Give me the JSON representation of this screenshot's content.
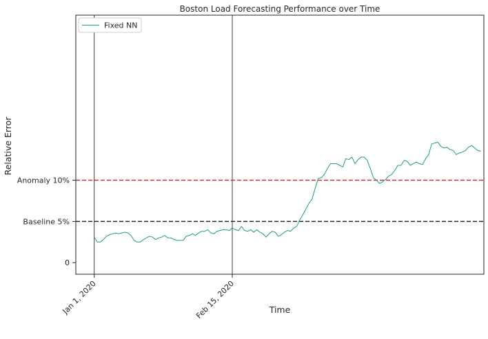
{
  "chart_data": {
    "type": "line",
    "title": "Boston Load Forecasting Performance over Time",
    "xlabel": "Time",
    "ylabel": "Relative Error",
    "xlim": [
      -6,
      127
    ],
    "ylim": [
      -1.4,
      30
    ],
    "legend_position": "top-left",
    "grid": false,
    "x_ticks": [
      {
        "label": "Jan 1, 2020",
        "x": 0
      },
      {
        "label": "Feb 15, 2020",
        "x": 45
      }
    ],
    "y_ticks": [
      {
        "label": "0",
        "y": 0
      },
      {
        "label": "Baseline 5%",
        "y": 5
      },
      {
        "label": "Anomaly 10%",
        "y": 10
      }
    ],
    "vertical_lines": [
      0,
      45
    ],
    "reference_lines": [
      {
        "y": 5,
        "color": "#262626",
        "style": "dashed"
      },
      {
        "y": 10,
        "color": "#cc3333",
        "style": "dashed"
      }
    ],
    "series": [
      {
        "name": "Fixed NN",
        "color": "#1b9e77",
        "x": [
          0,
          1,
          2,
          3,
          4,
          5,
          6,
          7,
          8,
          9,
          10,
          11,
          12,
          13,
          14,
          15,
          16,
          17,
          18,
          19,
          20,
          21,
          22,
          23,
          24,
          25,
          26,
          27,
          28,
          29,
          30,
          31,
          32,
          33,
          34,
          35,
          36,
          37,
          38,
          39,
          40,
          41,
          42,
          43,
          44,
          45,
          46,
          47,
          48,
          49,
          50,
          51,
          52,
          53,
          54,
          55,
          56,
          57,
          58,
          59,
          60,
          61,
          62,
          63,
          64,
          65,
          66,
          67,
          68,
          69,
          70,
          71,
          72,
          73,
          74,
          75,
          76,
          77,
          78,
          79,
          80,
          81,
          82,
          83,
          84,
          85,
          86,
          87,
          88,
          89,
          90,
          91,
          92,
          93,
          94,
          95,
          96,
          97,
          98,
          99,
          100,
          101,
          102,
          103,
          104,
          105,
          106,
          107,
          108,
          109,
          110,
          111,
          112,
          113,
          114,
          115,
          116,
          117,
          118,
          119,
          120,
          121,
          122,
          123,
          124,
          125,
          126
        ],
        "y": [
          3.1,
          2.5,
          2.5,
          2.8,
          3.2,
          3.4,
          3.5,
          3.6,
          3.5,
          3.6,
          3.7,
          3.6,
          3.3,
          2.7,
          2.5,
          2.5,
          2.8,
          3.0,
          3.2,
          3.1,
          2.8,
          3.0,
          3.1,
          3.3,
          3.0,
          3.0,
          2.8,
          2.7,
          2.7,
          2.7,
          3.2,
          3.3,
          3.5,
          3.3,
          3.6,
          3.8,
          3.8,
          4.0,
          3.6,
          3.5,
          3.8,
          3.9,
          4.0,
          4.0,
          3.9,
          4.2,
          4.0,
          3.9,
          4.4,
          3.9,
          3.8,
          4.0,
          3.7,
          4.0,
          3.7,
          3.5,
          3.1,
          3.5,
          3.8,
          3.7,
          3.2,
          3.4,
          3.7,
          3.9,
          3.8,
          4.2,
          4.4,
          5.2,
          5.8,
          6.5,
          7.2,
          7.7,
          9.0,
          10.2,
          10.3,
          10.7,
          11.4,
          12.0,
          12.0,
          12.0,
          11.8,
          11.6,
          12.6,
          12.5,
          12.8,
          12.0,
          12.5,
          12.8,
          12.8,
          12.4,
          11.4,
          10.3,
          10.0,
          9.6,
          9.8,
          10.1,
          10.5,
          10.7,
          11.2,
          11.8,
          11.8,
          12.4,
          12.3,
          11.8,
          12.0,
          12.2,
          12.0,
          11.9,
          12.6,
          13.1,
          14.4,
          14.5,
          14.6,
          14.1,
          13.9,
          14.0,
          13.7,
          13.6,
          13.1,
          13.3,
          13.4,
          13.6,
          14.0,
          14.2,
          13.9,
          13.6,
          13.5
        ]
      }
    ]
  }
}
